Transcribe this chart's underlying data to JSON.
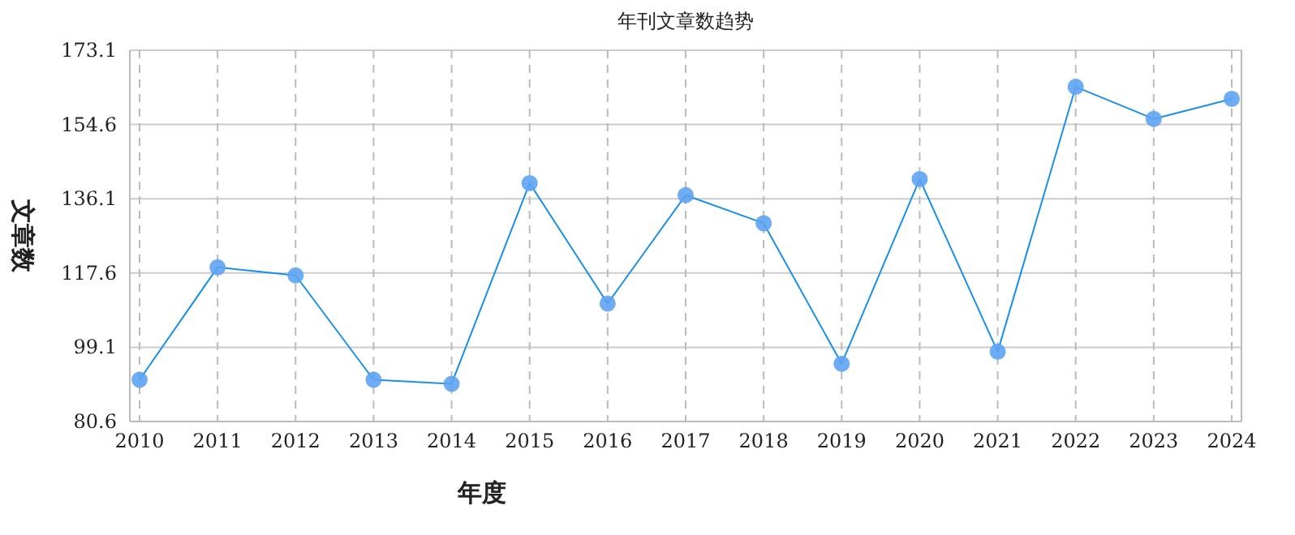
{
  "chart_data": {
    "type": "line",
    "title": "年刊文章数趋势",
    "xlabel": "年度",
    "ylabel": "文章数",
    "categories": [
      "2010",
      "2011",
      "2012",
      "2013",
      "2014",
      "2015",
      "2016",
      "2017",
      "2018",
      "2019",
      "2020",
      "2021",
      "2022",
      "2023",
      "2024"
    ],
    "series": [
      {
        "color": "#1a8fe8",
        "values": [
          91,
          119,
          117,
          91,
          90,
          140,
          110,
          137,
          130,
          95,
          141,
          98,
          164,
          156,
          161
        ]
      }
    ],
    "ylim": [
      80.6,
      173.1
    ],
    "yticks": [
      80.6,
      99.1,
      117.6,
      136.1,
      154.6,
      173.1
    ],
    "grid": true,
    "marker": "circle",
    "line_style": "solid"
  }
}
